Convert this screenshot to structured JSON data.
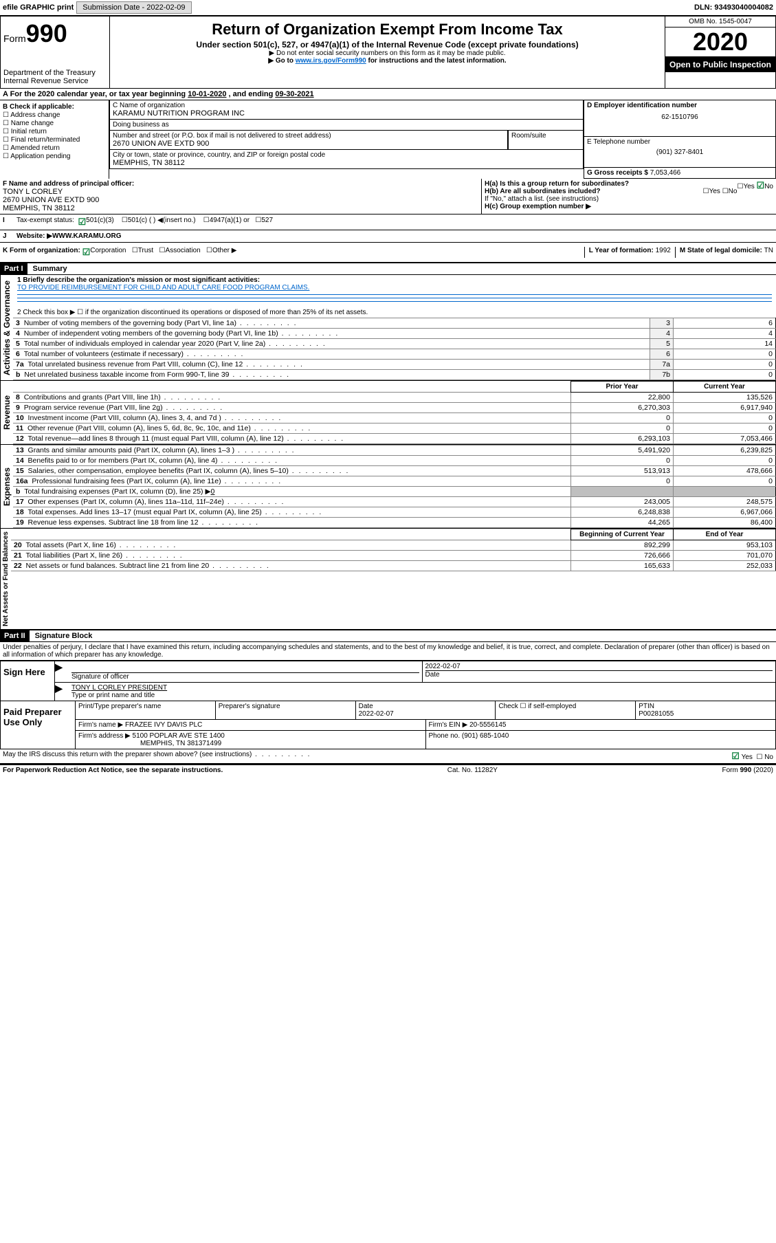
{
  "topbar": {
    "efile": "efile GRAPHIC print",
    "sub_label": "Submission Date - ",
    "sub_date": "2022-02-09",
    "dln_label": "DLN: ",
    "dln": "93493040004082"
  },
  "header": {
    "form_word": "Form",
    "form_num": "990",
    "dept": "Department of the Treasury\nInternal Revenue Service",
    "title": "Return of Organization Exempt From Income Tax",
    "subtitle": "Under section 501(c), 527, or 4947(a)(1) of the Internal Revenue Code (except private foundations)",
    "note1": "▶ Do not enter social security numbers on this form as it may be made public.",
    "note2_pre": "▶ Go to ",
    "note2_link": "www.irs.gov/Form990",
    "note2_post": " for instructions and the latest information.",
    "omb": "OMB No. 1545-0047",
    "year": "2020",
    "inspect": "Open to Public Inspection"
  },
  "A": {
    "text": "A For the 2020 calendar year, or tax year beginning ",
    "begin": "10-01-2020",
    "mid": " , and ending ",
    "end": "09-30-2021"
  },
  "B": {
    "hdr": "B Check if applicable:",
    "opts": [
      "Address change",
      "Name change",
      "Initial return",
      "Final return/terminated",
      "Amended return",
      "Application pending"
    ]
  },
  "C": {
    "label": "C Name of organization",
    "name": "KARAMU NUTRITION PROGRAM INC",
    "dba_label": "Doing business as",
    "dba": "",
    "street_label": "Number and street (or P.O. box if mail is not delivered to street address)",
    "room_label": "Room/suite",
    "street": "2670 UNION AVE EXTD 900",
    "city_label": "City or town, state or province, country, and ZIP or foreign postal code",
    "city": "MEMPHIS, TN  38112"
  },
  "D": {
    "label": "D Employer identification number",
    "val": "62-1510796"
  },
  "E": {
    "label": "E Telephone number",
    "val": "(901) 327-8401"
  },
  "G": {
    "label": "G Gross receipts $ ",
    "val": "7,053,466"
  },
  "F": {
    "label": "F  Name and address of principal officer:",
    "name": "TONY L CORLEY",
    "addr1": "2670 UNION AVE EXTD 900",
    "addr2": "MEMPHIS, TN  38112"
  },
  "H": {
    "a": "H(a)  Is this a group return for subordinates?",
    "b": "H(b)  Are all subordinates included?",
    "bnote": "If \"No,\" attach a list. (see instructions)",
    "c": "H(c)  Group exemption number ▶",
    "yes": "Yes",
    "no": "No"
  },
  "I": {
    "label": "Tax-exempt status:",
    "o1": "501(c)(3)",
    "o2": "501(c) (  ) ◀(insert no.)",
    "o3": "4947(a)(1) or",
    "o4": "527"
  },
  "J": {
    "label": "Website: ▶",
    "val": "  WWW.KARAMU.ORG"
  },
  "K": {
    "label": "K Form of organization:",
    "o1": "Corporation",
    "o2": "Trust",
    "o3": "Association",
    "o4": "Other ▶"
  },
  "L": {
    "label": "L Year of formation: ",
    "val": "1992"
  },
  "M": {
    "label": "M State of legal domicile: ",
    "val": "TN"
  },
  "part1": {
    "bar": "Part I",
    "title": "Summary"
  },
  "sec_gov": {
    "label": "Activities & Governance",
    "l1": "1   Briefly describe the organization's mission or most significant activities:",
    "l1v": "TO PROVIDE REIMBURSEMENT FOR CHILD AND ADULT CARE FOOD PROGRAM CLAIMS.",
    "l2": "2   Check this box ▶ ☐  if the organization discontinued its operations or disposed of more than 25% of its net assets.",
    "rows": [
      {
        "n": "3",
        "t": "Number of voting members of the governing body (Part VI, line 1a)",
        "b": "3",
        "v": "6"
      },
      {
        "n": "4",
        "t": "Number of independent voting members of the governing body (Part VI, line 1b)",
        "b": "4",
        "v": "4"
      },
      {
        "n": "5",
        "t": "Total number of individuals employed in calendar year 2020 (Part V, line 2a)",
        "b": "5",
        "v": "14"
      },
      {
        "n": "6",
        "t": "Total number of volunteers (estimate if necessary)",
        "b": "6",
        "v": "0"
      },
      {
        "n": "7a",
        "t": "Total unrelated business revenue from Part VIII, column (C), line 12",
        "b": "7a",
        "v": "0"
      },
      {
        "n": "b",
        "t": "Net unrelated business taxable income from Form 990-T, line 39",
        "b": "7b",
        "v": "0"
      }
    ]
  },
  "cols": {
    "prior": "Prior Year",
    "current": "Current Year",
    "boy": "Beginning of Current Year",
    "eoy": "End of Year"
  },
  "sec_rev": {
    "label": "Revenue",
    "rows": [
      {
        "n": "8",
        "t": "Contributions and grants (Part VIII, line 1h)",
        "p": "22,800",
        "c": "135,526"
      },
      {
        "n": "9",
        "t": "Program service revenue (Part VIII, line 2g)",
        "p": "6,270,303",
        "c": "6,917,940"
      },
      {
        "n": "10",
        "t": "Investment income (Part VIII, column (A), lines 3, 4, and 7d )",
        "p": "0",
        "c": "0"
      },
      {
        "n": "11",
        "t": "Other revenue (Part VIII, column (A), lines 5, 6d, 8c, 9c, 10c, and 11e)",
        "p": "0",
        "c": "0"
      },
      {
        "n": "12",
        "t": "Total revenue—add lines 8 through 11 (must equal Part VIII, column (A), line 12)",
        "p": "6,293,103",
        "c": "7,053,466"
      }
    ]
  },
  "sec_exp": {
    "label": "Expenses",
    "rows": [
      {
        "n": "13",
        "t": "Grants and similar amounts paid (Part IX, column (A), lines 1–3 )",
        "p": "5,491,920",
        "c": "6,239,825"
      },
      {
        "n": "14",
        "t": "Benefits paid to or for members (Part IX, column (A), line 4)",
        "p": "0",
        "c": "0"
      },
      {
        "n": "15",
        "t": "Salaries, other compensation, employee benefits (Part IX, column (A), lines 5–10)",
        "p": "513,913",
        "c": "478,666"
      },
      {
        "n": "16a",
        "t": "Professional fundraising fees (Part IX, column (A), line 11e)",
        "p": "0",
        "c": "0"
      },
      {
        "n": "b",
        "t": "Total fundraising expenses (Part IX, column (D), line 25) ▶",
        "bval": "0",
        "shade": true
      },
      {
        "n": "17",
        "t": "Other expenses (Part IX, column (A), lines 11a–11d, 11f–24e)",
        "p": "243,005",
        "c": "248,575"
      },
      {
        "n": "18",
        "t": "Total expenses. Add lines 13–17 (must equal Part IX, column (A), line 25)",
        "p": "6,248,838",
        "c": "6,967,066"
      },
      {
        "n": "19",
        "t": "Revenue less expenses. Subtract line 18 from line 12",
        "p": "44,265",
        "c": "86,400"
      }
    ]
  },
  "sec_net": {
    "label": "Net Assets or Fund Balances",
    "rows": [
      {
        "n": "20",
        "t": "Total assets (Part X, line 16)",
        "p": "892,299",
        "c": "953,103"
      },
      {
        "n": "21",
        "t": "Total liabilities (Part X, line 26)",
        "p": "726,666",
        "c": "701,070"
      },
      {
        "n": "22",
        "t": "Net assets or fund balances. Subtract line 21 from line 20",
        "p": "165,633",
        "c": "252,033"
      }
    ]
  },
  "part2": {
    "bar": "Part II",
    "title": "Signature Block",
    "decl": "Under penalties of perjury, I declare that I have examined this return, including accompanying schedules and statements, and to the best of my knowledge and belief, it is true, correct, and complete. Declaration of preparer (other than officer) is based on all information of which preparer has any knowledge."
  },
  "sign": {
    "here": "Sign Here",
    "sig_label": "Signature of officer",
    "date_label": "Date",
    "date": "2022-02-07",
    "name": "TONY L CORLEY  PRESIDENT",
    "name_label": "Type or print name and title"
  },
  "prep": {
    "label": "Paid Preparer Use Only",
    "c1": "Print/Type preparer's name",
    "c2": "Preparer's signature",
    "c3": "Date",
    "c3v": "2022-02-07",
    "c4": "Check ☐ if self-employed",
    "c5": "PTIN",
    "c5v": "P00281055",
    "firm_label": "Firm's name      ▶ ",
    "firm": "FRAZEE IVY DAVIS PLC",
    "ein_label": "Firm's EIN ▶ ",
    "ein": "20-5556145",
    "addr_label": "Firm's address ▶ ",
    "addr1": "5100 POPLAR AVE STE 1400",
    "addr2": "MEMPHIS, TN  381371499",
    "phone_label": "Phone no. ",
    "phone": "(901) 685-1040",
    "discuss": "May the IRS discuss this return with the preparer shown above? (see instructions)"
  },
  "footer": {
    "l": "For Paperwork Reduction Act Notice, see the separate instructions.",
    "c": "Cat. No. 11282Y",
    "r": "Form 990 (2020)"
  },
  "style": {
    "accent": "#0066cc",
    "check_green": "#0a7e3a"
  }
}
